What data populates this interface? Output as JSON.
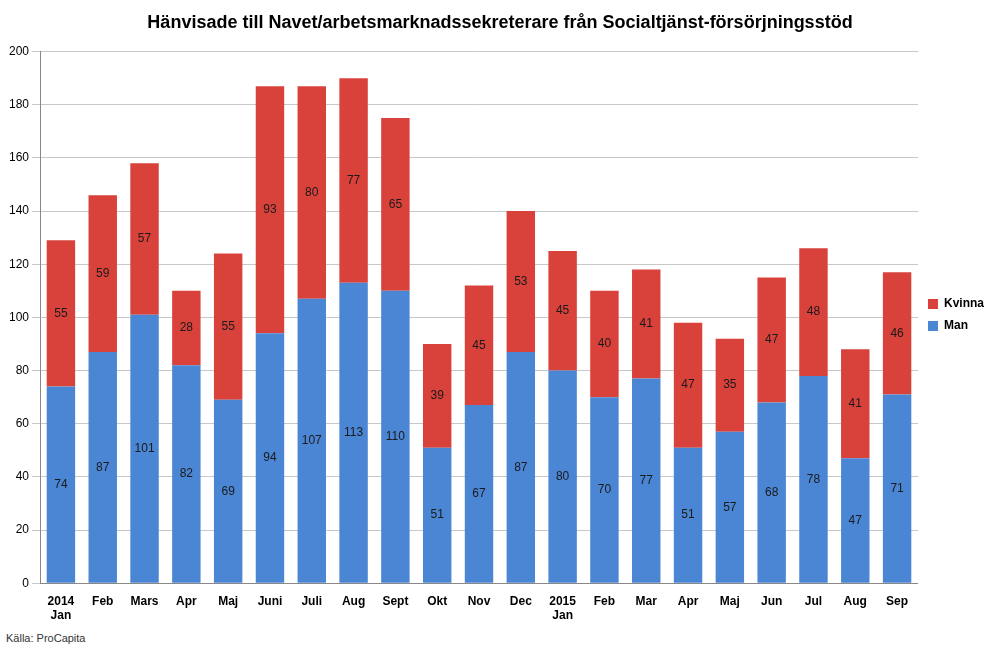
{
  "chart_data": {
    "type": "bar",
    "title": "Hänvisade till Navet/arbetsmarknadssekreterare från Socialtjänst-försörjningsstöd",
    "categories": [
      "2014 Jan",
      "Feb",
      "Mars",
      "Apr",
      "Maj",
      "Juni",
      "Juli",
      "Aug",
      "Sept",
      "Okt",
      "Nov",
      "Dec",
      "2015 Jan",
      "Feb",
      "Mar",
      "Apr",
      "Maj",
      "Jun",
      "Jul",
      "Aug",
      "Sep"
    ],
    "series": [
      {
        "name": "Man",
        "color": "#4a86d4",
        "values": [
          74,
          87,
          101,
          82,
          69,
          94,
          107,
          113,
          110,
          51,
          67,
          87,
          80,
          70,
          77,
          51,
          57,
          68,
          78,
          47,
          71
        ]
      },
      {
        "name": "Kvinna",
        "color": "#d9413b",
        "values": [
          55,
          59,
          57,
          28,
          55,
          93,
          80,
          77,
          65,
          39,
          45,
          53,
          45,
          40,
          41,
          47,
          35,
          47,
          48,
          41,
          46
        ]
      }
    ],
    "ylim": [
      0,
      200
    ],
    "yticks": [
      0,
      20,
      40,
      60,
      80,
      100,
      120,
      140,
      160,
      180,
      200
    ],
    "grid": true,
    "legend": "right",
    "stacked": true,
    "data_labels": true,
    "annotations": [
      "Källa: ProCapita"
    ]
  }
}
